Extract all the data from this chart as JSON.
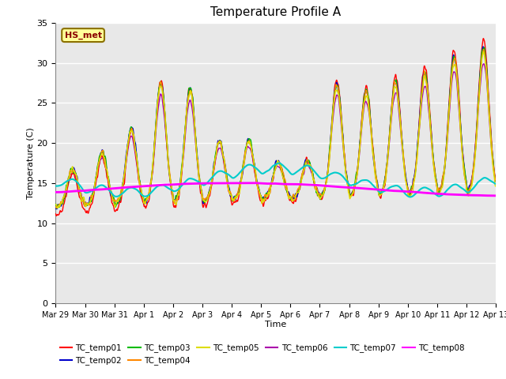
{
  "title": "Temperature Profile A",
  "xlabel": "Time",
  "ylabel": "Temperature (C)",
  "ylim": [
    0,
    35
  ],
  "n_days": 15,
  "annotation_text": "HS_met",
  "annotation_color": "#8B0000",
  "annotation_bg": "#FFFF99",
  "annotation_border": "#8B7000",
  "plot_bg": "#E8E8E8",
  "fig_bg": "#FFFFFF",
  "series_colors": {
    "TC_temp01": "#FF0000",
    "TC_temp02": "#0000CC",
    "TC_temp03": "#00BB00",
    "TC_temp04": "#FF8800",
    "TC_temp05": "#DDDD00",
    "TC_temp06": "#AA00AA",
    "TC_temp07": "#00CCCC",
    "TC_temp08": "#FF00FF"
  },
  "xtick_labels": [
    "Mar 29",
    "Mar 30",
    "Mar 31",
    "Apr 1",
    "Apr 2",
    "Apr 3",
    "Apr 4",
    "Apr 5",
    "Apr 6",
    "Apr 7",
    "Apr 8",
    "Apr 9",
    "Apr 10",
    "Apr 11",
    "Apr 12",
    "Apr 13"
  ]
}
